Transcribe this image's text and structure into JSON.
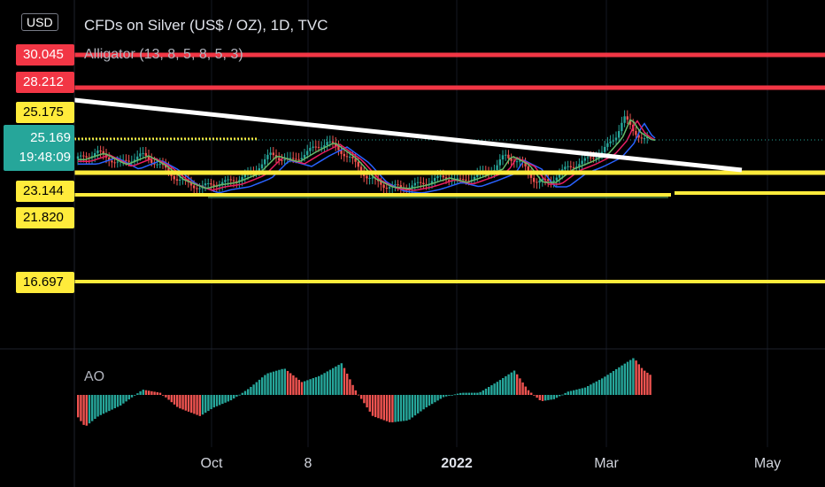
{
  "header": {
    "currency": "USD",
    "symbol_title": "CFDs on Silver (US$ / OZ), 1D, TVC",
    "indicator": "Alligator (13, 8, 5, 8, 5, 3)",
    "ao_label": "AO"
  },
  "price_labels": [
    {
      "value": "30.045",
      "color": "#f23645"
    },
    {
      "value": "28.212",
      "color": "#f23645"
    },
    {
      "value": "25.175",
      "color": "#ffeb3b"
    },
    {
      "value": "23.144",
      "color": "#ffeb3b"
    },
    {
      "value": "21.820",
      "color": "#ffeb3b"
    },
    {
      "value": "16.697",
      "color": "#ffeb3b"
    }
  ],
  "current_price": {
    "value": "25.169",
    "countdown": "19:48:09",
    "color": "#26a69a"
  },
  "x_axis": [
    "Oct",
    "8",
    "2022",
    "Mar",
    "May"
  ],
  "colors": {
    "up": "#26a69a",
    "down": "#ef5350",
    "red_line": "#f23645",
    "yellow_line": "#ffeb3b",
    "trend_line": "#ffffff",
    "jaw": "#2962ff",
    "teeth": "#e91e63",
    "lips": "#66bb6a"
  }
}
